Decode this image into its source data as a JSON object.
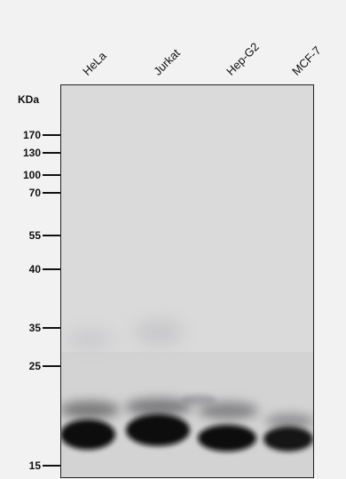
{
  "figure": {
    "axis_unit": "KDa",
    "lanes": [
      "HeLa",
      "Jurkat",
      "Hep-G2",
      "MCF-7"
    ],
    "markers": [
      "170",
      "130",
      "100",
      "70",
      "55",
      "40",
      "35",
      "25",
      "15"
    ]
  }
}
